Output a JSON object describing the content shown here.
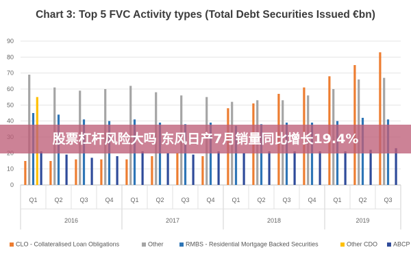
{
  "chart_data": {
    "type": "bar",
    "title": "Chart 3: Top 5 FVC Activity types (Total Debt Securities Issued €bn)",
    "ylim": [
      0,
      90
    ],
    "yticks": [
      0,
      10,
      20,
      30,
      40,
      50,
      60,
      70,
      80,
      90
    ],
    "grid": true,
    "legend_position": "bottom",
    "categories": [
      "Q1",
      "Q2",
      "Q3",
      "Q4",
      "Q1",
      "Q2",
      "Q3",
      "Q4",
      "Q1",
      "Q2",
      "Q3",
      "Q4",
      "Q1",
      "Q2",
      "Q3"
    ],
    "groups": [
      {
        "label": "2016",
        "count": 4
      },
      {
        "label": "2017",
        "count": 4
      },
      {
        "label": "2018",
        "count": 4
      },
      {
        "label": "2019",
        "count": 3
      }
    ],
    "series": [
      {
        "name": "CLO - Collateralised Loan Obligations",
        "color": "#ED7D31",
        "values": [
          15,
          15,
          16,
          16,
          16,
          18,
          20,
          18,
          48,
          51,
          57,
          61,
          68,
          75,
          83
        ]
      },
      {
        "name": "Other",
        "color": "#A5A5A5",
        "values": [
          69,
          61,
          59,
          60,
          62,
          58,
          56,
          55,
          52,
          53,
          53,
          56,
          60,
          66,
          67
        ]
      },
      {
        "name": "RMBS - Residential Mortgage Backed Securities",
        "color": "#2E75B6",
        "values": [
          45,
          44,
          41,
          40,
          41,
          39,
          38,
          39,
          37,
          38,
          39,
          39,
          40,
          42,
          41
        ]
      },
      {
        "name": "Other CDO",
        "color": "#FFC000",
        "values": [
          55,
          0,
          0,
          0,
          0,
          0,
          0,
          0,
          0,
          0,
          0,
          0,
          0,
          0,
          0
        ]
      },
      {
        "name": "ABCP",
        "color": "#2F4B9A",
        "values": [
          21,
          19,
          17,
          18,
          21,
          20,
          19,
          21,
          20,
          21,
          21,
          21,
          21,
          22,
          23
        ]
      }
    ]
  },
  "overlay": {
    "headline": "股票杠杆风险大吗 东风日产7月销量同比增长19.4%"
  }
}
